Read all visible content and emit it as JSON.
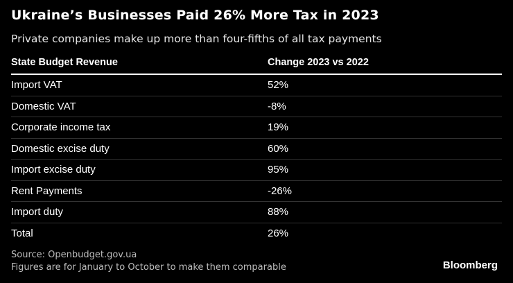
{
  "title": "Ukraine’s Businesses Paid 26% More Tax in 2023",
  "subtitle": "Private companies make up more than four-fifths of all tax payments",
  "chart_data": {
    "type": "table",
    "title": "Ukraine’s Businesses Paid 26% More Tax in 2023",
    "subtitle": "Private companies make up more than four-fifths of all tax payments",
    "columns": [
      "State Budget Revenue",
      "Change 2023 vs 2022"
    ],
    "rows": [
      {
        "label": "Import VAT",
        "value": "52%"
      },
      {
        "label": "Domestic VAT",
        "value": "-8%"
      },
      {
        "label": "Corporate income tax",
        "value": "19%"
      },
      {
        "label": "Domestic excise duty",
        "value": "60%"
      },
      {
        "label": "Import excise duty",
        "value": "95%"
      },
      {
        "label": "Rent Payments",
        "value": "-26%"
      },
      {
        "label": "Import duty",
        "value": "88%"
      },
      {
        "label": "Total",
        "value": "26%"
      }
    ]
  },
  "footer": {
    "source": "Source: Openbudget.gov.ua",
    "note": "Figures are for January to October to make them comparable",
    "brand": "Bloomberg"
  }
}
